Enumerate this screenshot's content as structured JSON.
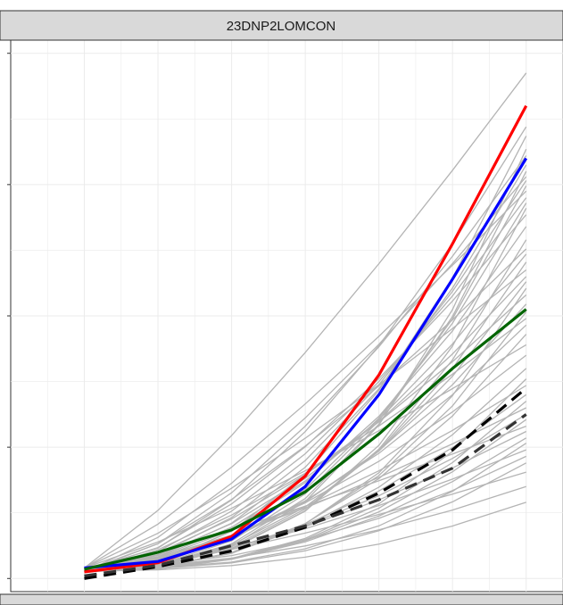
{
  "chart_data": {
    "type": "line",
    "title": "",
    "xlabel": "",
    "ylabel": "",
    "panel_label": "23DNP2LOMCON",
    "next_panel_label": "",
    "xlim": [
      0,
      7.5
    ],
    "ylim": [
      -0.1,
      4.1
    ],
    "grid": true,
    "legend": "none",
    "x": [
      1,
      2,
      3,
      4,
      5,
      6,
      7
    ],
    "background_series": {
      "color": "#b4b4b4",
      "end_values": [
        3.85,
        3.44,
        3.37,
        3.27,
        3.22,
        3.15,
        3.1,
        3.06,
        3.03,
        2.99,
        2.95,
        2.9,
        2.86,
        2.82,
        2.77,
        2.68,
        2.58,
        2.51,
        2.47,
        2.41,
        2.35,
        2.3,
        2.26,
        2.21,
        2.16,
        2.09,
        2.03,
        1.98,
        1.93,
        1.86,
        1.78,
        1.7,
        1.6,
        1.52,
        1.47,
        1.4,
        1.35,
        1.3,
        1.25,
        1.21,
        1.16,
        1.12,
        1.07,
        1.03,
        0.98,
        0.93,
        0.88,
        0.81,
        0.7,
        0.58
      ]
    },
    "series": [
      {
        "color": "#ff0000",
        "style": "solid",
        "values": [
          0.05,
          0.12,
          0.32,
          0.78,
          1.55,
          2.55,
          3.6
        ]
      },
      {
        "color": "#0000ff",
        "style": "solid",
        "values": [
          0.08,
          0.13,
          0.3,
          0.7,
          1.4,
          2.28,
          3.2
        ]
      },
      {
        "color": "#006400",
        "style": "solid",
        "values": [
          0.07,
          0.2,
          0.37,
          0.66,
          1.1,
          1.6,
          2.05
        ]
      },
      {
        "color": "#000000",
        "style": "dashed",
        "values": [
          0.0,
          0.09,
          0.21,
          0.39,
          0.65,
          0.98,
          1.45
        ]
      },
      {
        "color": "#333333",
        "style": "dashed",
        "values": [
          0.02,
          0.1,
          0.25,
          0.4,
          0.6,
          0.84,
          1.25
        ]
      }
    ]
  }
}
